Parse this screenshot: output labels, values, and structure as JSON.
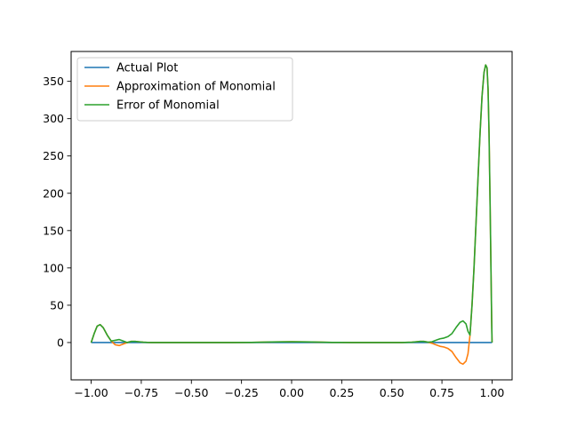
{
  "chart_data": {
    "type": "line",
    "title": "",
    "xlabel": "",
    "ylabel": "",
    "xlim": [
      -1.1,
      1.1
    ],
    "ylim": [
      -50,
      390
    ],
    "xticks": [
      -1.0,
      -0.75,
      -0.5,
      -0.25,
      0.0,
      0.25,
      0.5,
      0.75,
      1.0
    ],
    "xtick_labels": [
      "−1.00",
      "−0.75",
      "−0.50",
      "−0.25",
      "0.00",
      "0.25",
      "0.50",
      "0.75",
      "1.00"
    ],
    "yticks": [
      0,
      50,
      100,
      150,
      200,
      250,
      300,
      350
    ],
    "ytick_labels": [
      "0",
      "50",
      "100",
      "150",
      "200",
      "250",
      "300",
      "350"
    ],
    "grid": false,
    "legend_position": "top-left",
    "series": [
      {
        "name": "Actual Plot",
        "color": "#1f77b4",
        "x": [
          -1.0,
          -0.5,
          0.0,
          0.5,
          1.0
        ],
        "y": [
          0,
          0,
          0,
          0,
          0
        ]
      },
      {
        "name": "Approximation of Monomial",
        "color": "#ff7f0e",
        "x": [
          -1.0,
          -0.985,
          -0.97,
          -0.955,
          -0.94,
          -0.92,
          -0.9,
          -0.88,
          -0.86,
          -0.84,
          -0.82,
          -0.8,
          -0.78,
          -0.76,
          -0.74,
          -0.72,
          -0.7,
          -0.65,
          -0.6,
          -0.5,
          -0.4,
          -0.3,
          -0.2,
          -0.1,
          0.0,
          0.1,
          0.2,
          0.3,
          0.4,
          0.5,
          0.55,
          0.6,
          0.62,
          0.64,
          0.66,
          0.68,
          0.7,
          0.72,
          0.74,
          0.76,
          0.78,
          0.8,
          0.82,
          0.84,
          0.855,
          0.87,
          0.88,
          0.89,
          0.9,
          0.91,
          0.92,
          0.93,
          0.94,
          0.95,
          0.96,
          0.968,
          0.975,
          0.98,
          0.985,
          0.99,
          0.995,
          0.998,
          1.0
        ],
        "y": [
          0,
          12,
          22,
          24,
          20,
          10,
          2,
          -3,
          -4,
          -2,
          0,
          1.5,
          1.5,
          1,
          0.5,
          0.2,
          0,
          0,
          0,
          0,
          0,
          0,
          0.2,
          0.8,
          1,
          0.8,
          0.2,
          0,
          0,
          0,
          0,
          0.5,
          1,
          1.5,
          1.5,
          0.5,
          -1,
          -3,
          -5,
          -6,
          -8,
          -12,
          -20,
          -27,
          -29,
          -25,
          -15,
          10,
          50,
          100,
          160,
          220,
          280,
          330,
          362,
          372,
          368,
          340,
          280,
          190,
          90,
          30,
          0
        ]
      },
      {
        "name": "Error of Monomial",
        "color": "#2ca02c",
        "x": [
          -1.0,
          -0.985,
          -0.97,
          -0.955,
          -0.94,
          -0.92,
          -0.9,
          -0.88,
          -0.86,
          -0.84,
          -0.82,
          -0.8,
          -0.78,
          -0.76,
          -0.74,
          -0.72,
          -0.7,
          -0.65,
          -0.6,
          -0.5,
          -0.4,
          -0.3,
          -0.2,
          -0.1,
          0.0,
          0.1,
          0.2,
          0.3,
          0.4,
          0.5,
          0.55,
          0.6,
          0.62,
          0.64,
          0.66,
          0.68,
          0.7,
          0.72,
          0.74,
          0.76,
          0.78,
          0.8,
          0.82,
          0.84,
          0.855,
          0.87,
          0.88,
          0.89,
          0.9,
          0.91,
          0.92,
          0.93,
          0.94,
          0.95,
          0.96,
          0.968,
          0.975,
          0.98,
          0.985,
          0.99,
          0.995,
          0.998,
          1.0
        ],
        "y": [
          0,
          12,
          22,
          24,
          20,
          10,
          2,
          3,
          4,
          2,
          0,
          1.5,
          1.5,
          1,
          0.5,
          0.2,
          0,
          0,
          0,
          0,
          0,
          0,
          0.2,
          0.8,
          1,
          0.8,
          0.2,
          0,
          0,
          0,
          0,
          0.5,
          1,
          1.5,
          1.5,
          0.5,
          1,
          3,
          5,
          6,
          8,
          12,
          20,
          27,
          29,
          25,
          15,
          10,
          50,
          100,
          160,
          220,
          280,
          330,
          362,
          372,
          368,
          340,
          280,
          190,
          90,
          30,
          0
        ]
      }
    ]
  }
}
